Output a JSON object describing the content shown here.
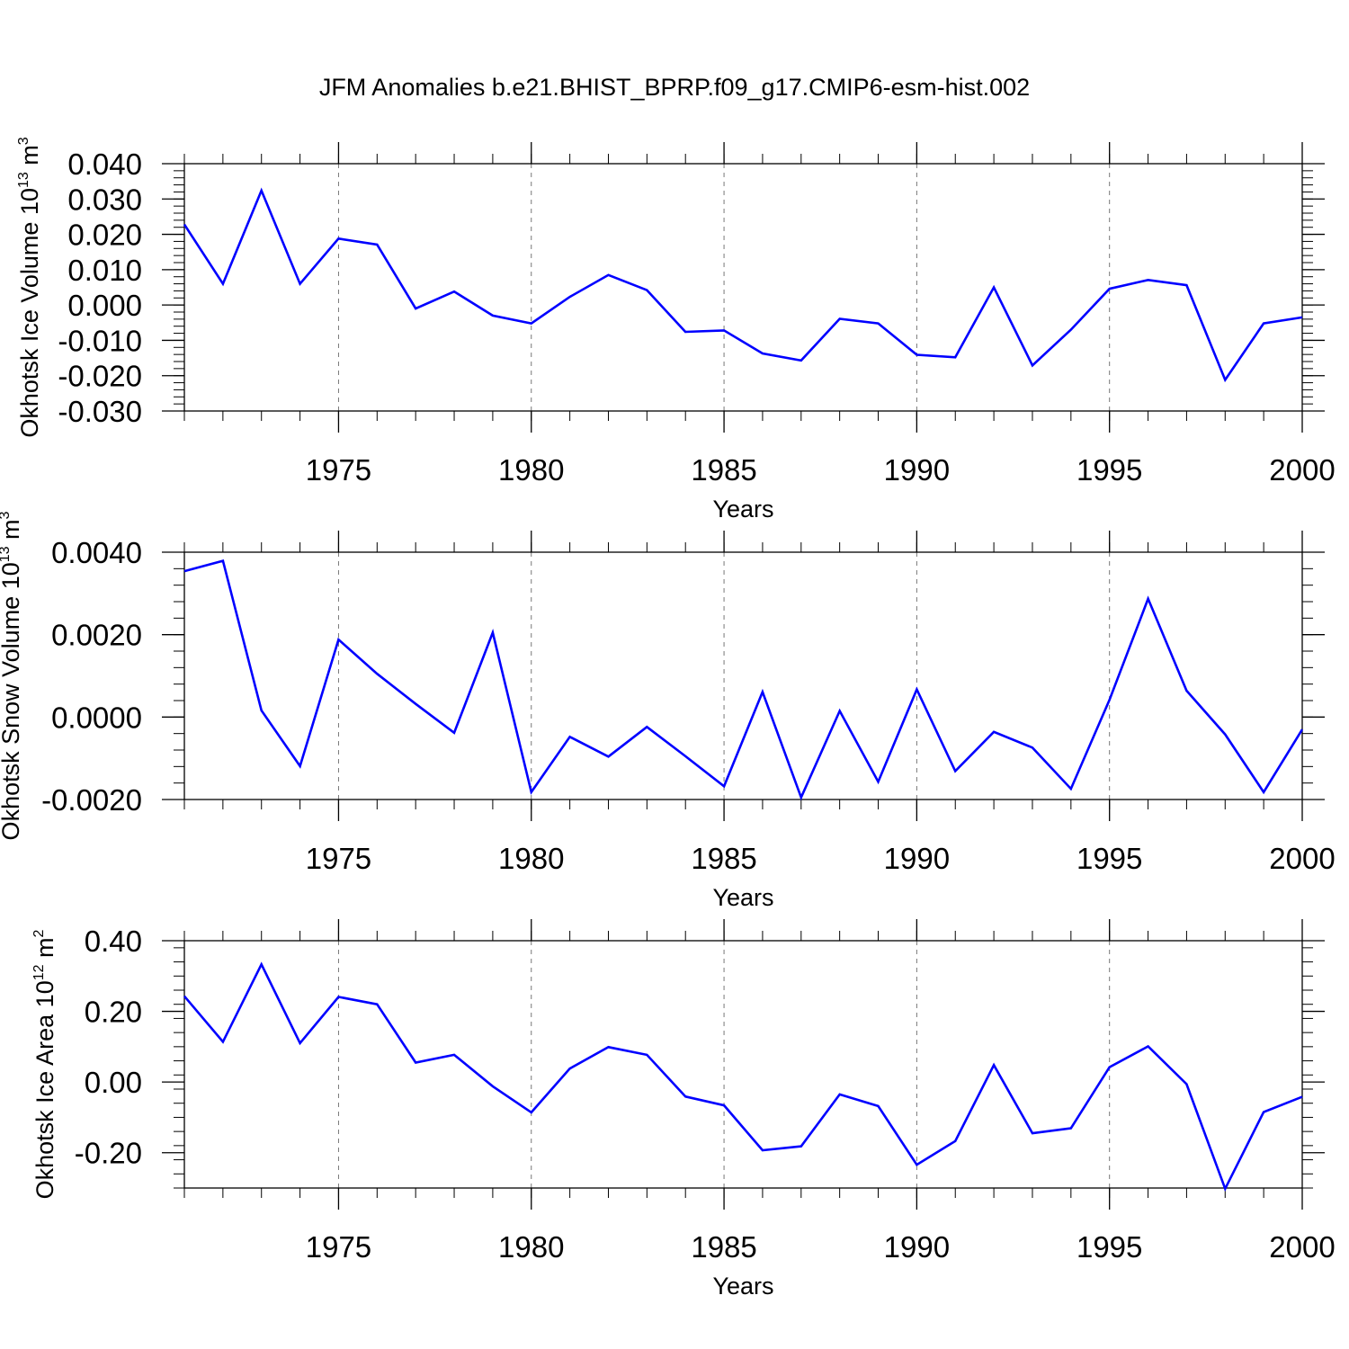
{
  "title": "JFM Anomalies b.e21.BHIST_BPRP.f09_g17.CMIP6-esm-hist.002",
  "line_color": "#0000ff",
  "chart_data": [
    {
      "type": "line",
      "xlabel": "Years",
      "ylabel_parts": {
        "main": "Okhotsk Ice Volume 10",
        "exp": "13",
        "unit": " m",
        "unit_exp": "3"
      },
      "xlim": [
        1971,
        2000
      ],
      "ylim": [
        -0.03,
        0.04
      ],
      "x_ticks": [
        "1975",
        "1980",
        "1985",
        "1990",
        "1995",
        "2000"
      ],
      "y_ticks": [
        "0.040",
        "0.030",
        "0.020",
        "0.010",
        "0.000",
        "-0.010",
        "-0.020",
        "-0.030"
      ],
      "y_tick_values": [
        0.04,
        0.03,
        0.02,
        0.01,
        0.0,
        -0.01,
        -0.02,
        -0.03
      ],
      "x": [
        1971,
        1972,
        1973,
        1974,
        1975,
        1976,
        1977,
        1978,
        1979,
        1980,
        1981,
        1982,
        1983,
        1984,
        1985,
        1986,
        1987,
        1988,
        1989,
        1990,
        1991,
        1992,
        1993,
        1994,
        1995,
        1996,
        1997,
        1998,
        1999,
        2000
      ],
      "values": [
        0.0228,
        0.006,
        0.0324,
        0.006,
        0.0188,
        0.0171,
        -0.001,
        0.0038,
        -0.003,
        -0.0052,
        0.0023,
        0.0085,
        0.0042,
        -0.0076,
        -0.0072,
        -0.0137,
        -0.0157,
        -0.0039,
        -0.0052,
        -0.0141,
        -0.0148,
        0.005,
        -0.0171,
        -0.007,
        0.0046,
        0.0071,
        0.0056,
        -0.0212,
        -0.0052,
        -0.0035
      ]
    },
    {
      "type": "line",
      "xlabel": "Years",
      "ylabel_parts": {
        "main": "Okhotsk Snow Volume 10",
        "exp": "13",
        "unit": " m",
        "unit_exp": "3"
      },
      "xlim": [
        1971,
        2000
      ],
      "ylim": [
        -0.002,
        0.004
      ],
      "x_ticks": [
        "1975",
        "1980",
        "1985",
        "1990",
        "1995",
        "2000"
      ],
      "y_ticks": [
        "0.0040",
        "0.0020",
        "0.0000",
        "-0.0020"
      ],
      "y_tick_values": [
        0.004,
        0.002,
        0.0,
        -0.002
      ],
      "x": [
        1971,
        1972,
        1973,
        1974,
        1975,
        1976,
        1977,
        1978,
        1979,
        1980,
        1981,
        1982,
        1983,
        1984,
        1985,
        1986,
        1987,
        1988,
        1989,
        1990,
        1991,
        1992,
        1993,
        1994,
        1995,
        1996,
        1997,
        1998,
        1999,
        2000
      ],
      "values": [
        0.00354,
        0.00379,
        0.00016,
        -0.00119,
        0.00188,
        0.00105,
        0.00032,
        -0.00038,
        0.00205,
        -0.00182,
        -0.00048,
        -0.00096,
        -0.00024,
        -0.00095,
        -0.00168,
        0.00061,
        -0.00195,
        0.00015,
        -0.00157,
        0.00067,
        -0.00131,
        -0.00036,
        -0.00074,
        -0.00174,
        0.00042,
        0.00287,
        0.00064,
        -0.00042,
        -0.00182,
        -0.0003
      ]
    },
    {
      "type": "line",
      "xlabel": "Years",
      "ylabel_parts": {
        "main": "Okhotsk Ice Area 10",
        "exp": "12",
        "unit": " m",
        "unit_exp": "2"
      },
      "xlim": [
        1971,
        2000
      ],
      "ylim": [
        -0.3,
        0.4
      ],
      "x_ticks": [
        "1975",
        "1980",
        "1985",
        "1990",
        "1995",
        "2000"
      ],
      "y_ticks": [
        "0.40",
        "0.20",
        "0.00",
        "-0.20"
      ],
      "y_tick_values": [
        0.4,
        0.2,
        0.0,
        -0.2
      ],
      "x": [
        1971,
        1972,
        1973,
        1974,
        1975,
        1976,
        1977,
        1978,
        1979,
        1980,
        1981,
        1982,
        1983,
        1984,
        1985,
        1986,
        1987,
        1988,
        1989,
        1990,
        1991,
        1992,
        1993,
        1994,
        1995,
        1996,
        1997,
        1998,
        1999,
        2000
      ],
      "values": [
        0.243,
        0.114,
        0.333,
        0.11,
        0.241,
        0.22,
        0.055,
        0.077,
        -0.012,
        -0.086,
        0.038,
        0.099,
        0.077,
        -0.041,
        -0.066,
        -0.193,
        -0.182,
        -0.035,
        -0.068,
        -0.234,
        -0.167,
        0.048,
        -0.145,
        -0.131,
        0.042,
        0.101,
        -0.006,
        -0.302,
        -0.085,
        -0.042
      ]
    }
  ]
}
